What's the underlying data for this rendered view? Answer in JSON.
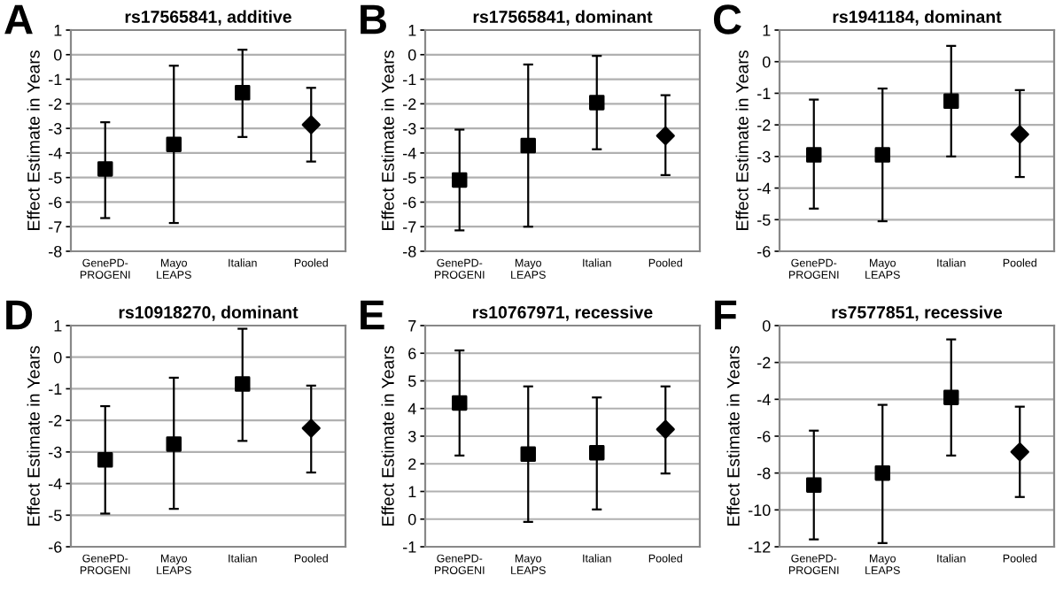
{
  "chart_data": [
    {
      "type": "scatter",
      "title": "rs17565841, additive",
      "ylabel": "Effect Estimate in Years",
      "annotations": [
        "A"
      ],
      "categories": [
        "GenePD-\nPROGENI",
        "Mayo\nLEAPS",
        "Italian",
        "Pooled"
      ],
      "ylim": [
        -8,
        1
      ],
      "yticks": [
        -8,
        -7,
        -6,
        -5,
        -4,
        -3,
        -2,
        -1,
        0,
        1
      ],
      "grid": "y",
      "series": [
        {
          "color": "#000000",
          "marker": "square",
          "values": [
            -4.65,
            -3.65,
            -1.55,
            null
          ],
          "errors": [
            [
              -6.65,
              -2.75
            ],
            [
              -6.85,
              -0.45
            ],
            [
              -3.35,
              0.2
            ],
            null
          ]
        },
        {
          "color": "#000000",
          "marker": "diamond",
          "values": [
            null,
            null,
            null,
            -2.85
          ],
          "errors": [
            null,
            null,
            null,
            [
              -4.35,
              -1.35
            ]
          ]
        }
      ]
    },
    {
      "type": "scatter",
      "title": "rs17565841, dominant",
      "ylabel": "Effect Estimate in Years",
      "annotations": [
        "B"
      ],
      "categories": [
        "GenePD-\nPROGENI",
        "Mayo\nLEAPS",
        "Italian",
        "Pooled"
      ],
      "ylim": [
        -8,
        1
      ],
      "yticks": [
        -8,
        -7,
        -6,
        -5,
        -4,
        -3,
        -2,
        -1,
        0,
        1
      ],
      "grid": "y",
      "series": [
        {
          "color": "#000000",
          "marker": "square",
          "values": [
            -5.1,
            -3.7,
            -1.95,
            null
          ],
          "errors": [
            [
              -7.15,
              -3.05
            ],
            [
              -7.0,
              -0.4
            ],
            [
              -3.85,
              -0.05
            ],
            null
          ]
        },
        {
          "color": "#000000",
          "marker": "diamond",
          "values": [
            null,
            null,
            null,
            -3.3
          ],
          "errors": [
            null,
            null,
            null,
            [
              -4.9,
              -1.65
            ]
          ]
        }
      ]
    },
    {
      "type": "scatter",
      "title": "rs1941184, dominant",
      "ylabel": "Effect Estimate in Years",
      "annotations": [
        "C"
      ],
      "categories": [
        "GenePD-\nPROGENI",
        "Mayo\nLEAPS",
        "Italian",
        "Pooled"
      ],
      "ylim": [
        -6,
        1
      ],
      "yticks": [
        -6,
        -5,
        -4,
        -3,
        -2,
        -1,
        0,
        1
      ],
      "grid": "y",
      "series": [
        {
          "color": "#000000",
          "marker": "square",
          "values": [
            -2.95,
            -2.95,
            -1.25,
            null
          ],
          "errors": [
            [
              -4.65,
              -1.2
            ],
            [
              -5.05,
              -0.85
            ],
            [
              -3.0,
              0.5
            ],
            null
          ]
        },
        {
          "color": "#000000",
          "marker": "diamond",
          "values": [
            null,
            null,
            null,
            -2.3
          ],
          "errors": [
            null,
            null,
            null,
            [
              -3.65,
              -0.9
            ]
          ]
        }
      ]
    },
    {
      "type": "scatter",
      "title": "rs10918270, dominant",
      "ylabel": "Effect Estimate in Years",
      "annotations": [
        "D"
      ],
      "categories": [
        "GenePD-\nPROGENI",
        "Mayo\nLEAPS",
        "Italian",
        "Pooled"
      ],
      "ylim": [
        -6,
        1
      ],
      "yticks": [
        -6,
        -5,
        -4,
        -3,
        -2,
        -1,
        0,
        1
      ],
      "grid": "y",
      "series": [
        {
          "color": "#000000",
          "marker": "square",
          "values": [
            -3.25,
            -2.75,
            -0.85,
            null
          ],
          "errors": [
            [
              -4.95,
              -1.55
            ],
            [
              -4.8,
              -0.65
            ],
            [
              -2.65,
              0.9
            ],
            null
          ]
        },
        {
          "color": "#000000",
          "marker": "diamond",
          "values": [
            null,
            null,
            null,
            -2.25
          ],
          "errors": [
            null,
            null,
            null,
            [
              -3.65,
              -0.9
            ]
          ]
        }
      ]
    },
    {
      "type": "scatter",
      "title": "rs10767971, recessive",
      "ylabel": "Effect Estimate in Years",
      "annotations": [
        "E"
      ],
      "categories": [
        "GenePD-\nPROGENI",
        "Mayo\nLEAPS",
        "Italian",
        "Pooled"
      ],
      "ylim": [
        -1,
        7
      ],
      "yticks": [
        -1,
        0,
        1,
        2,
        3,
        4,
        5,
        6,
        7
      ],
      "grid": "y",
      "series": [
        {
          "color": "#000000",
          "marker": "square",
          "values": [
            4.2,
            2.35,
            2.4,
            null
          ],
          "errors": [
            [
              2.3,
              6.1
            ],
            [
              -0.1,
              4.8
            ],
            [
              0.35,
              4.4
            ],
            null
          ]
        },
        {
          "color": "#000000",
          "marker": "diamond",
          "values": [
            null,
            null,
            null,
            3.25
          ],
          "errors": [
            null,
            null,
            null,
            [
              1.65,
              4.8
            ]
          ]
        }
      ]
    },
    {
      "type": "scatter",
      "title": "rs7577851, recessive",
      "ylabel": "Effect Estimate in Years",
      "annotations": [
        "F"
      ],
      "categories": [
        "GenePD-\nPROGENI",
        "Mayo\nLEAPS",
        "Italian",
        "Pooled"
      ],
      "ylim": [
        -12,
        0
      ],
      "yticks": [
        -12,
        -10,
        -8,
        -6,
        -4,
        -2,
        0
      ],
      "grid": "y",
      "series": [
        {
          "color": "#000000",
          "marker": "square",
          "values": [
            -8.65,
            -8.0,
            -3.9,
            null
          ],
          "errors": [
            [
              -11.6,
              -5.7
            ],
            [
              -11.8,
              -4.3
            ],
            [
              -7.05,
              -0.75
            ],
            null
          ]
        },
        {
          "color": "#000000",
          "marker": "diamond",
          "values": [
            null,
            null,
            null,
            -6.85
          ],
          "errors": [
            null,
            null,
            null,
            [
              -9.3,
              -4.4
            ]
          ]
        }
      ]
    }
  ]
}
